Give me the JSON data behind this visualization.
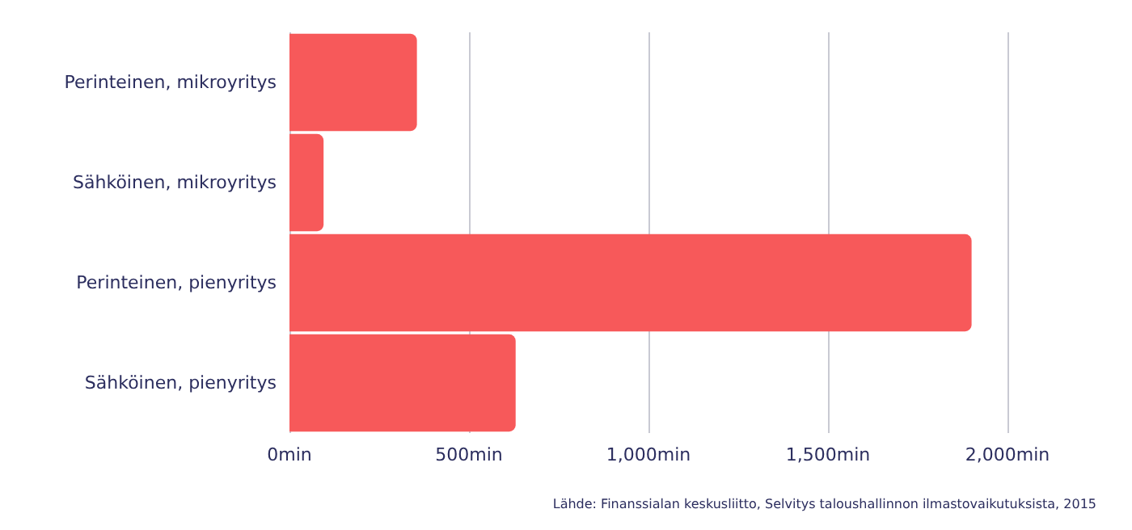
{
  "chart_data": {
    "type": "bar",
    "orientation": "horizontal",
    "categories": [
      "Perinteinen, mikroyritys",
      "Sähköinen, mikroyritys",
      "Perinteinen, pienyritys",
      "Sähköinen, pienyritys"
    ],
    "values": [
      355,
      95,
      1900,
      630
    ],
    "color": "#f7595a",
    "xlim": [
      0,
      2000
    ],
    "xticks": [
      {
        "value": 0,
        "label": "0min"
      },
      {
        "value": 500,
        "label": "500min"
      },
      {
        "value": 1000,
        "label": "1,000min"
      },
      {
        "value": 1500,
        "label": "1,500min"
      },
      {
        "value": 2000,
        "label": "2,000min"
      }
    ],
    "grid": "x",
    "annotations": [
      "Lähde: Finanssialan keskusliitto, Selvitys taloushallinnon ilmastovaikutuksista, 2015"
    ]
  }
}
